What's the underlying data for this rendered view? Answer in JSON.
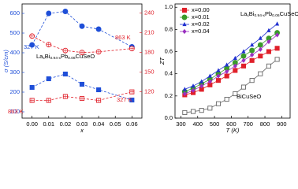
{
  "chart_data": [
    {
      "type": "line",
      "x_label": "x",
      "y_label": "σ (S/cm)",
      "formula": [
        "La",
        "x",
        "Bi",
        "0.94-x",
        "Pb",
        "0.06",
        "CuSeO"
      ],
      "annotations": [
        "327 K",
        "863 K",
        "863 K",
        "327 K"
      ],
      "x": [
        0,
        0.01,
        0.02,
        0.03,
        0.04,
        0.06
      ],
      "xlim": [
        -0.006,
        0.066
      ],
      "xticks": [
        {
          "value": 0,
          "label": "0.00"
        },
        {
          "value": 0.01,
          "label": "0.01"
        },
        {
          "value": 0.02,
          "label": "0.02"
        },
        {
          "value": 0.03,
          "label": "0.03"
        },
        {
          "value": 0.04,
          "label": "0.04"
        },
        {
          "value": 0.05,
          "label": "0.05"
        },
        {
          "value": 0.06,
          "label": "0.06"
        }
      ],
      "ylim": [
        68,
        648
      ],
      "yticks": [
        100,
        200,
        300,
        400,
        500,
        600
      ],
      "y_color": "#1f4fd8",
      "y2lim": [
        80,
        254
      ],
      "y2ticks": [
        120,
        150,
        180,
        210,
        240
      ],
      "y2_color": "#e0202a",
      "series": [
        {
          "color": "#1f4fd8",
          "marker": "circle",
          "line": "dashed",
          "values": [
            440,
            600,
            610,
            535,
            520,
            430
          ]
        },
        {
          "color": "#e0202a",
          "marker": "crossed-circle",
          "line": "dashed",
          "axis": "y2",
          "values": [
            205,
            192,
            183,
            180,
            181,
            186
          ]
        },
        {
          "color": "#1f4fd8",
          "marker": "square",
          "line": "dashed",
          "values": [
            224,
            268,
            292,
            240,
            212,
            160
          ]
        },
        {
          "color": "#e0202a",
          "marker": "crossed-square",
          "line": "dashed",
          "axis": "y2",
          "values": [
            107,
            107,
            113,
            110,
            107,
            120
          ]
        }
      ]
    },
    {
      "type": "line",
      "x_label": "T (K)",
      "y_label": "ZT",
      "formula": [
        "La",
        "x",
        "Bi",
        "0.94-x",
        "Pb",
        "0.06",
        "CuSeO"
      ],
      "annotations": [
        "BiCuSeO"
      ],
      "x": [
        323,
        373,
        423,
        473,
        523,
        573,
        623,
        673,
        723,
        773,
        823,
        873
      ],
      "xlim": [
        265,
        950
      ],
      "xticks": [
        300,
        400,
        500,
        600,
        700,
        800,
        900
      ],
      "ylim": [
        0,
        1.03
      ],
      "yticks": [
        {
          "value": 0,
          "label": "0.0"
        },
        {
          "value": 0.2,
          "label": "0.2"
        },
        {
          "value": 0.4,
          "label": "0.4"
        },
        {
          "value": 0.6,
          "label": "0.6"
        },
        {
          "value": 0.8,
          "label": "0.8"
        },
        {
          "value": 1,
          "label": "1.0"
        }
      ],
      "legend": "upper left",
      "series": [
        {
          "name": "x=0.00",
          "color": "#e0202a",
          "marker": "square",
          "line": "solid",
          "values": [
            0.21,
            0.23,
            0.26,
            0.3,
            0.34,
            0.38,
            0.43,
            0.47,
            0.52,
            0.56,
            0.6,
            0.63
          ]
        },
        {
          "name": "x=0.01",
          "color": "#3a9a2a",
          "marker": "circle",
          "line": "solid",
          "values": [
            0.24,
            0.27,
            0.31,
            0.35,
            0.4,
            0.45,
            0.5,
            0.56,
            0.61,
            0.66,
            0.72,
            0.77
          ]
        },
        {
          "name": "x=0.02",
          "color": "#2030d0",
          "marker": "triangle",
          "line": "solid",
          "values": [
            0.26,
            0.29,
            0.33,
            0.38,
            0.43,
            0.48,
            0.54,
            0.6,
            0.66,
            0.72,
            0.79,
            0.85
          ]
        },
        {
          "name": "x=0.04",
          "color": "#9a30c0",
          "marker": "diamond",
          "line": "solid",
          "values": [
            0.22,
            0.25,
            0.29,
            0.33,
            0.38,
            0.42,
            0.47,
            0.52,
            0.57,
            0.62,
            0.69,
            0.75
          ]
        },
        {
          "color": "#666666",
          "marker": "open-square",
          "line": "solid",
          "values": [
            0.05,
            0.06,
            0.07,
            0.09,
            0.13,
            0.17,
            0.22,
            0.28,
            0.34,
            0.4,
            0.47,
            0.53
          ]
        }
      ]
    }
  ]
}
